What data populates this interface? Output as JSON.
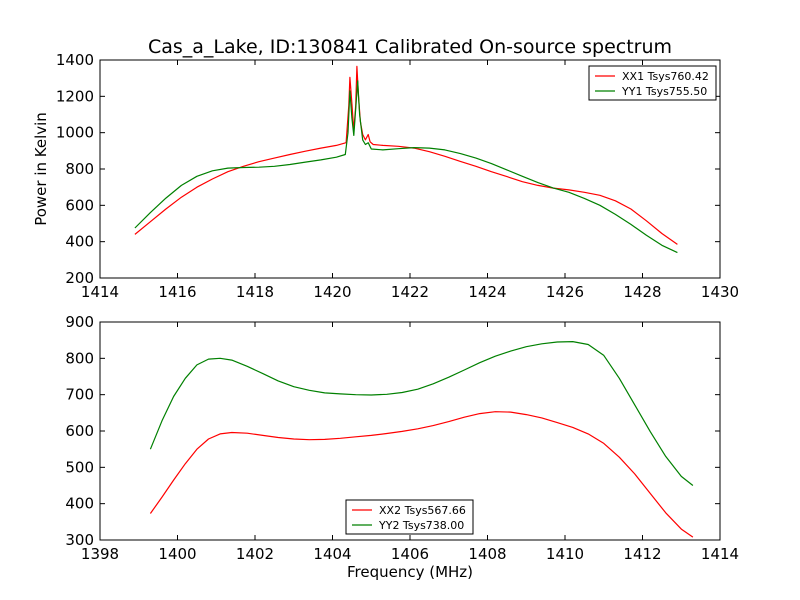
{
  "title": "Cas_a_Lake, ID:130841 Calibrated On-source spectrum",
  "chart_data": [
    {
      "type": "line",
      "title": "Cas_a_Lake, ID:130841 Calibrated On-source spectrum",
      "xlabel": "",
      "ylabel": "Power in Kelvin",
      "xlim": [
        1414,
        1430
      ],
      "ylim": [
        200,
        1400
      ],
      "xticks": [
        "1414",
        "1416",
        "1418",
        "1420",
        "1422",
        "1424",
        "1426",
        "1428",
        "1430"
      ],
      "yticks": [
        "200",
        "400",
        "600",
        "800",
        "1000",
        "1200",
        "1400"
      ],
      "grid": false,
      "legend_position": "upper right",
      "series": [
        {
          "name": "XX1 Tsys760.42",
          "color": "#ff0000",
          "x": [
            1414.9,
            1415.3,
            1415.7,
            1416.1,
            1416.5,
            1416.9,
            1417.3,
            1417.7,
            1418.1,
            1418.5,
            1418.9,
            1419.3,
            1419.7,
            1420.1,
            1420.35,
            1420.42,
            1420.45,
            1420.5,
            1420.55,
            1420.6,
            1420.63,
            1420.67,
            1420.72,
            1420.78,
            1420.85,
            1420.92,
            1420.97,
            1421.05,
            1421.3,
            1421.7,
            1422.1,
            1422.5,
            1422.9,
            1423.3,
            1423.7,
            1424.1,
            1424.5,
            1424.9,
            1425.3,
            1425.7,
            1426.1,
            1426.5,
            1426.9,
            1427.3,
            1427.7,
            1428.1,
            1428.5,
            1428.9
          ],
          "y": [
            440,
            510,
            580,
            645,
            700,
            745,
            785,
            815,
            840,
            860,
            880,
            898,
            915,
            930,
            945,
            1150,
            1305,
            1160,
            1010,
            1150,
            1365,
            1200,
            1060,
            990,
            960,
            990,
            950,
            935,
            930,
            925,
            915,
            895,
            870,
            842,
            815,
            785,
            758,
            730,
            710,
            695,
            685,
            672,
            655,
            625,
            580,
            515,
            445,
            385
          ]
        },
        {
          "name": "YY1 Tsys755.50",
          "color": "#008000",
          "x": [
            1414.9,
            1415.3,
            1415.7,
            1416.1,
            1416.5,
            1416.9,
            1417.3,
            1417.7,
            1418.1,
            1418.5,
            1418.9,
            1419.3,
            1419.7,
            1420.1,
            1420.33,
            1420.4,
            1420.45,
            1420.5,
            1420.55,
            1420.6,
            1420.65,
            1420.7,
            1420.78,
            1420.85,
            1420.92,
            1421.0,
            1421.3,
            1421.7,
            1422.1,
            1422.5,
            1422.9,
            1423.3,
            1423.7,
            1424.1,
            1424.5,
            1424.9,
            1425.3,
            1425.7,
            1426.1,
            1426.5,
            1426.9,
            1427.3,
            1427.7,
            1428.1,
            1428.5,
            1428.9
          ],
          "y": [
            475,
            560,
            640,
            710,
            760,
            790,
            805,
            808,
            810,
            815,
            825,
            838,
            850,
            865,
            880,
            1000,
            1230,
            1080,
            985,
            1130,
            1285,
            1100,
            960,
            935,
            945,
            910,
            905,
            912,
            918,
            915,
            905,
            885,
            860,
            830,
            795,
            760,
            725,
            695,
            672,
            638,
            600,
            550,
            495,
            435,
            380,
            340
          ]
        }
      ]
    },
    {
      "type": "line",
      "title": "",
      "xlabel": "Frequency (MHz)",
      "ylabel": "",
      "xlim": [
        1398,
        1414
      ],
      "ylim": [
        300,
        900
      ],
      "xticks": [
        "1398",
        "1400",
        "1402",
        "1404",
        "1406",
        "1408",
        "1410",
        "1412",
        "1414"
      ],
      "yticks": [
        "300",
        "400",
        "500",
        "600",
        "700",
        "800",
        "900"
      ],
      "grid": false,
      "legend_position": "lower center",
      "series": [
        {
          "name": "XX2 Tsys567.66",
          "color": "#ff0000",
          "x": [
            1399.3,
            1399.6,
            1399.9,
            1400.2,
            1400.5,
            1400.8,
            1401.1,
            1401.4,
            1401.8,
            1402.2,
            1402.6,
            1403.0,
            1403.4,
            1403.8,
            1404.2,
            1404.6,
            1405.0,
            1405.4,
            1405.8,
            1406.2,
            1406.6,
            1407.0,
            1407.4,
            1407.8,
            1408.2,
            1408.6,
            1409.0,
            1409.4,
            1409.8,
            1410.2,
            1410.6,
            1411.0,
            1411.4,
            1411.8,
            1412.2,
            1412.6,
            1413.0,
            1413.3
          ],
          "y": [
            373,
            418,
            465,
            510,
            550,
            578,
            592,
            596,
            594,
            588,
            582,
            578,
            576,
            577,
            580,
            584,
            588,
            593,
            599,
            606,
            615,
            626,
            638,
            648,
            653,
            652,
            645,
            636,
            623,
            610,
            592,
            566,
            528,
            482,
            428,
            375,
            330,
            308
          ]
        },
        {
          "name": "YY2 Tsys738.00",
          "color": "#008000",
          "x": [
            1399.3,
            1399.6,
            1399.9,
            1400.2,
            1400.5,
            1400.8,
            1401.1,
            1401.4,
            1401.8,
            1402.2,
            1402.6,
            1403.0,
            1403.4,
            1403.8,
            1404.2,
            1404.6,
            1405.0,
            1405.4,
            1405.8,
            1406.2,
            1406.6,
            1407.0,
            1407.4,
            1407.8,
            1408.2,
            1408.6,
            1409.0,
            1409.4,
            1409.8,
            1410.2,
            1410.6,
            1411.0,
            1411.4,
            1411.8,
            1412.2,
            1412.6,
            1413.0,
            1413.3
          ],
          "y": [
            550,
            628,
            695,
            745,
            782,
            798,
            800,
            795,
            778,
            758,
            738,
            722,
            712,
            705,
            702,
            700,
            699,
            701,
            706,
            715,
            730,
            748,
            768,
            788,
            806,
            820,
            832,
            840,
            845,
            846,
            838,
            808,
            745,
            672,
            598,
            530,
            475,
            450
          ]
        }
      ]
    }
  ]
}
